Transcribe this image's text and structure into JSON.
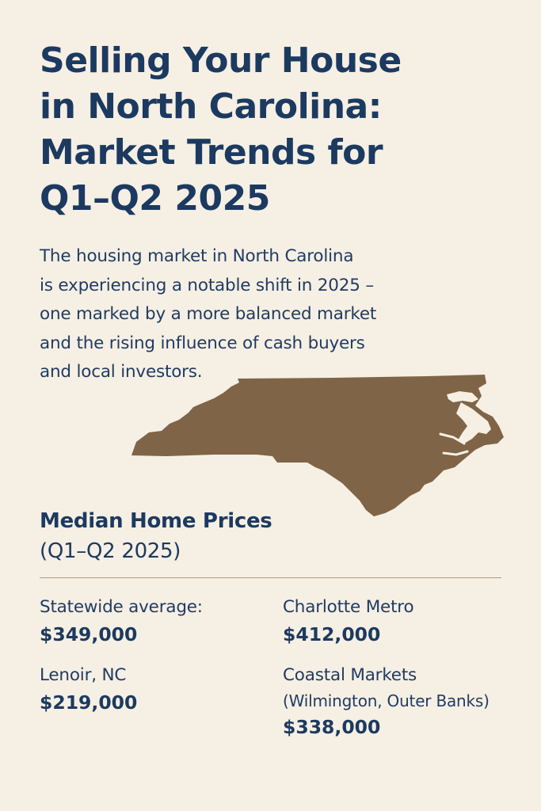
{
  "header": {
    "title": "Selling Your House\nin North Carolina:\nMarket Trends for\nQ1–Q2 2025"
  },
  "intro": {
    "text": "The housing market in North Carolina\nis experiencing a notable shift in 2025 –\none marked by a more balanced market\nand the rising influence of cash buyers\nand local investors."
  },
  "map": {
    "icon": "north-carolina-map-icon",
    "fill_color": "#7f6447"
  },
  "prices": {
    "title": "Median Home Prices",
    "subtitle": "(Q1–Q2 2025)",
    "items": [
      {
        "label": "Statewide average:",
        "value": "$349,000"
      },
      {
        "label": "Charlotte Metro",
        "value": "$412,000"
      },
      {
        "label": "Lenoir, NC",
        "value": "$219,000"
      },
      {
        "label": "Coastal Markets",
        "sublabel": "(Wilmington, Outer Banks)",
        "value": "$338,000"
      }
    ]
  },
  "colors": {
    "background": "#f6efe4",
    "navy": "#1c3a60",
    "divider": "#a89a86"
  }
}
